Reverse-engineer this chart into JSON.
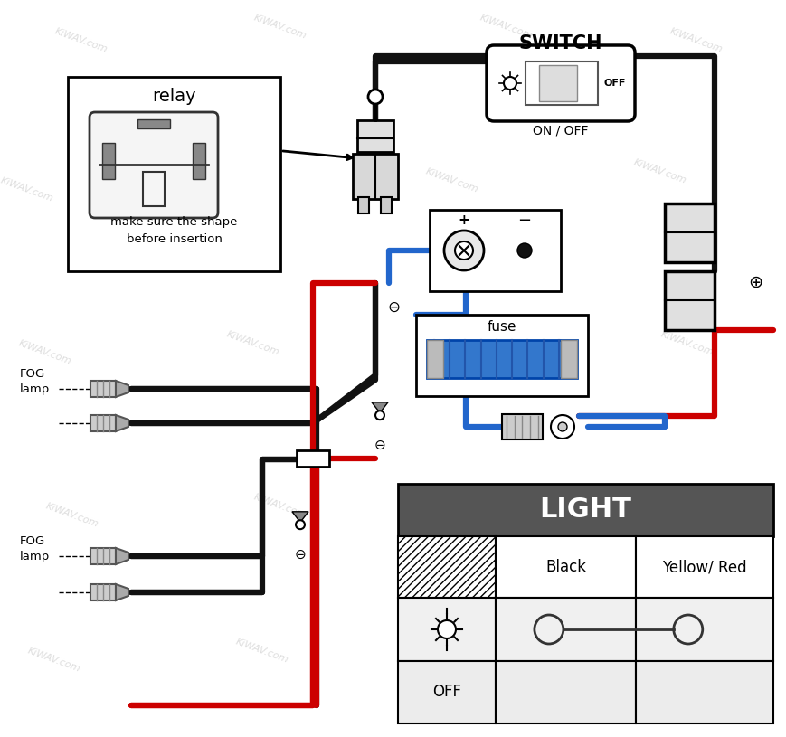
{
  "bg_color": "#ffffff",
  "watermark": "KiWAV.com",
  "wire_red": "#cc0000",
  "wire_black": "#111111",
  "wire_blue": "#2266cc",
  "wire_gray": "#888888",
  "lw_wire": 4.5,
  "switch_label": "SWITCH",
  "switch_sublabel": "ON / OFF",
  "fuse_label": "fuse",
  "relay_label": "relay",
  "relay_sublabel": "make sure the shape\nbefore insertion",
  "fog_label": "FOG\nlamp",
  "plus_symbol": "⊕",
  "minus_symbol": "⊖",
  "light_header": "LIGHT",
  "light_col1": "Black",
  "light_col2": "Yellow/ Red",
  "light_row2": "OFF",
  "header_bg": "#555555",
  "header_fg": "#ffffff"
}
